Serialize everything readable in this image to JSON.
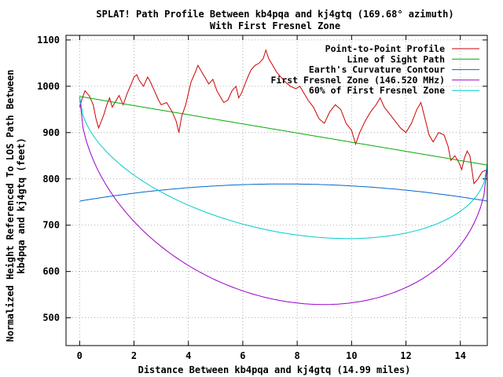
{
  "chart_data": {
    "type": "line",
    "title": "SPLAT! Path Profile Between kb4pqa and kj4gtq (169.68° azimuth)",
    "subtitle": "With First Fresnel Zone",
    "xlabel": "Distance Between kb4pqa and kj4gtq (14.99 miles)",
    "ylabel_line1": "Normalized Height Referenced To LOS Path Between",
    "ylabel_line2": "kb4pqa and kj4gtq (feet)",
    "xlim": [
      -0.5,
      14.99
    ],
    "ylim": [
      440,
      1110
    ],
    "x_ticks": [
      0,
      2,
      4,
      6,
      8,
      10,
      12,
      14
    ],
    "y_ticks": [
      500,
      600,
      700,
      800,
      900,
      1000,
      1100
    ],
    "grid": true,
    "legend_position": "top-right",
    "series": [
      {
        "name": "Point-to-Point Profile",
        "color": "#cc0000",
        "points": [
          [
            0,
            955
          ],
          [
            0.1,
            975
          ],
          [
            0.2,
            990
          ],
          [
            0.35,
            980
          ],
          [
            0.5,
            960
          ],
          [
            0.6,
            930
          ],
          [
            0.7,
            910
          ],
          [
            0.8,
            925
          ],
          [
            0.9,
            940
          ],
          [
            1.0,
            960
          ],
          [
            1.1,
            975
          ],
          [
            1.2,
            955
          ],
          [
            1.3,
            965
          ],
          [
            1.45,
            980
          ],
          [
            1.6,
            960
          ],
          [
            1.75,
            985
          ],
          [
            1.9,
            1005
          ],
          [
            2.0,
            1020
          ],
          [
            2.1,
            1025
          ],
          [
            2.2,
            1012
          ],
          [
            2.35,
            1000
          ],
          [
            2.5,
            1020
          ],
          [
            2.6,
            1010
          ],
          [
            2.75,
            990
          ],
          [
            2.9,
            970
          ],
          [
            3.0,
            960
          ],
          [
            3.2,
            965
          ],
          [
            3.4,
            945
          ],
          [
            3.55,
            925
          ],
          [
            3.65,
            900
          ],
          [
            3.75,
            935
          ],
          [
            3.9,
            960
          ],
          [
            4.0,
            985
          ],
          [
            4.1,
            1010
          ],
          [
            4.25,
            1030
          ],
          [
            4.35,
            1045
          ],
          [
            4.5,
            1030
          ],
          [
            4.6,
            1020
          ],
          [
            4.75,
            1005
          ],
          [
            4.9,
            1015
          ],
          [
            5.05,
            990
          ],
          [
            5.2,
            975
          ],
          [
            5.3,
            965
          ],
          [
            5.45,
            970
          ],
          [
            5.6,
            990
          ],
          [
            5.75,
            1000
          ],
          [
            5.85,
            975
          ],
          [
            5.95,
            985
          ],
          [
            6.05,
            1000
          ],
          [
            6.15,
            1015
          ],
          [
            6.3,
            1035
          ],
          [
            6.45,
            1045
          ],
          [
            6.6,
            1050
          ],
          [
            6.75,
            1060
          ],
          [
            6.85,
            1078
          ],
          [
            6.95,
            1060
          ],
          [
            7.1,
            1045
          ],
          [
            7.25,
            1030
          ],
          [
            7.4,
            1020
          ],
          [
            7.55,
            1010
          ],
          [
            7.75,
            1000
          ],
          [
            7.95,
            995
          ],
          [
            8.1,
            1000
          ],
          [
            8.25,
            985
          ],
          [
            8.4,
            970
          ],
          [
            8.6,
            955
          ],
          [
            8.8,
            930
          ],
          [
            9.0,
            920
          ],
          [
            9.2,
            945
          ],
          [
            9.4,
            960
          ],
          [
            9.6,
            950
          ],
          [
            9.8,
            920
          ],
          [
            10.0,
            905
          ],
          [
            10.15,
            875
          ],
          [
            10.3,
            900
          ],
          [
            10.5,
            925
          ],
          [
            10.7,
            945
          ],
          [
            10.9,
            960
          ],
          [
            11.05,
            975
          ],
          [
            11.2,
            955
          ],
          [
            11.4,
            940
          ],
          [
            11.6,
            925
          ],
          [
            11.8,
            910
          ],
          [
            12.0,
            900
          ],
          [
            12.2,
            920
          ],
          [
            12.4,
            950
          ],
          [
            12.55,
            965
          ],
          [
            12.7,
            930
          ],
          [
            12.85,
            895
          ],
          [
            13.0,
            880
          ],
          [
            13.2,
            900
          ],
          [
            13.4,
            895
          ],
          [
            13.55,
            870
          ],
          [
            13.65,
            840
          ],
          [
            13.8,
            850
          ],
          [
            13.95,
            835
          ],
          [
            14.05,
            820
          ],
          [
            14.15,
            845
          ],
          [
            14.25,
            860
          ],
          [
            14.35,
            850
          ],
          [
            14.5,
            790
          ],
          [
            14.65,
            800
          ],
          [
            14.8,
            815
          ],
          [
            14.99,
            820
          ]
        ]
      },
      {
        "name": "Line of Sight Path",
        "color": "#00aa00",
        "points": [
          [
            0,
            978
          ],
          [
            14.99,
            830
          ]
        ]
      },
      {
        "name": "Earth's Curvature Contour",
        "color": "#0066cc",
        "curve": {
          "kind": "earth",
          "start": 752,
          "end": 752,
          "peak": 789,
          "peak_x": 7.5
        }
      },
      {
        "name": "First Fresnel Zone (146.520 MHz)",
        "color": "#9900cc",
        "curve": {
          "kind": "fresnel",
          "factor": 1.0,
          "los_start": 978,
          "los_end": 830,
          "peak_depth": 368
        }
      },
      {
        "name": "60% of First Fresnel Zone",
        "color": "#00cccc",
        "curve": {
          "kind": "fresnel",
          "factor": 0.6,
          "los_start": 978,
          "los_end": 830,
          "peak_depth": 368
        }
      }
    ]
  }
}
